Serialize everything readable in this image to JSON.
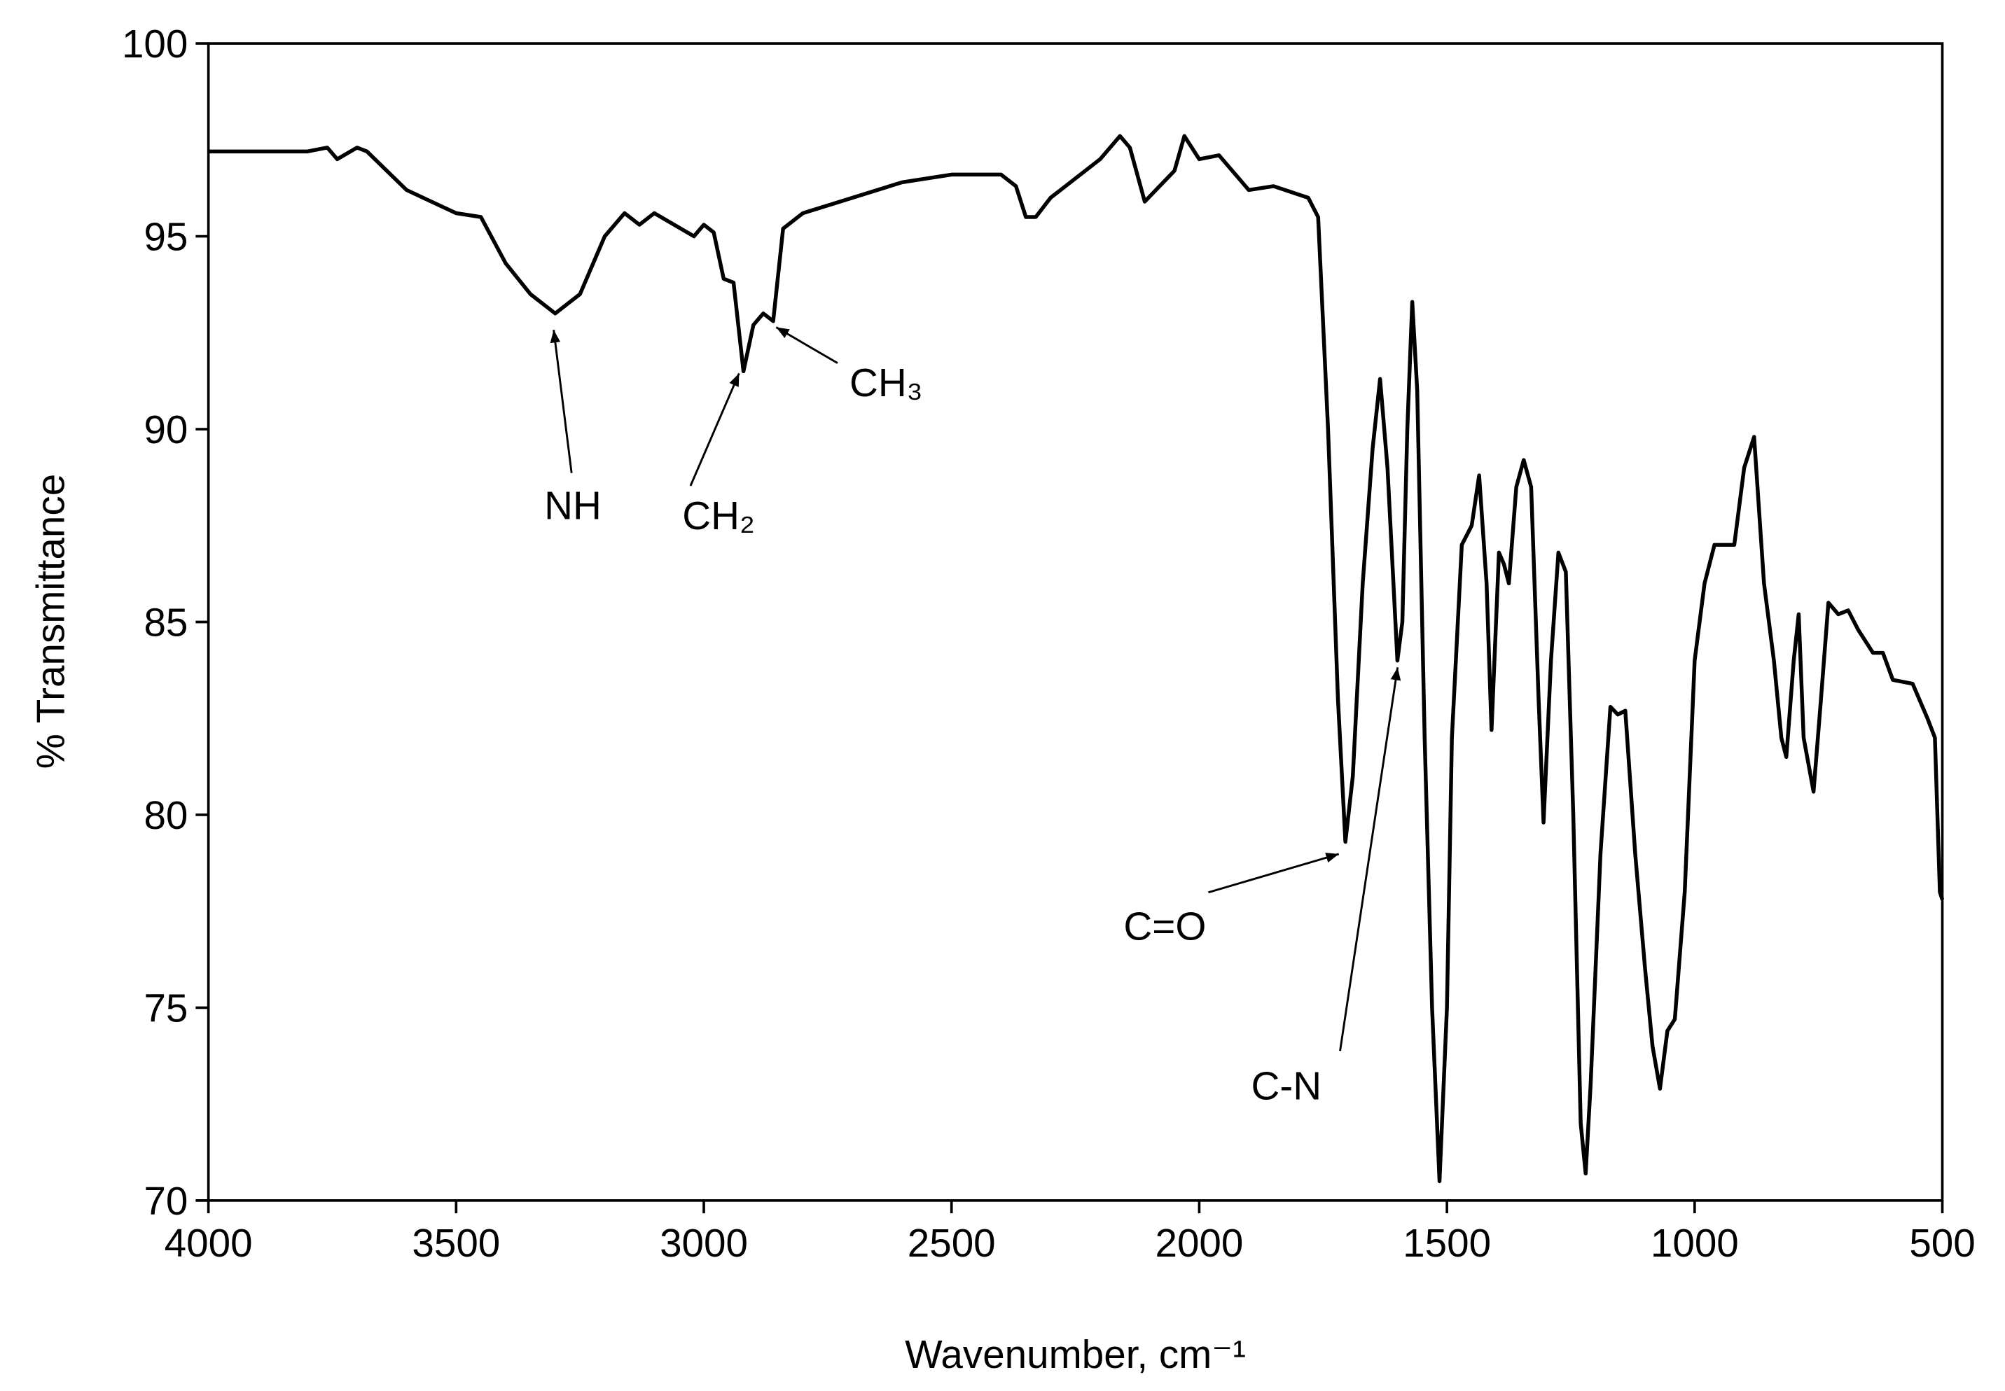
{
  "chart_data": {
    "type": "line",
    "xlabel": "Wavenumber, cm⁻¹",
    "ylabel": "% Transmittance",
    "xlim": [
      4000,
      500
    ],
    "ylim": [
      70,
      100
    ],
    "xticks": [
      4000,
      3500,
      3000,
      2500,
      2000,
      1500,
      1000,
      500
    ],
    "yticks": [
      70,
      75,
      80,
      85,
      90,
      95,
      100
    ],
    "grid": false,
    "series": [
      {
        "color": "#000000",
        "x": [
          4000,
          3900,
          3800,
          3760,
          3740,
          3700,
          3680,
          3600,
          3500,
          3450,
          3400,
          3350,
          3300,
          3250,
          3200,
          3160,
          3130,
          3100,
          3060,
          3020,
          3000,
          2980,
          2960,
          2940,
          2920,
          2900,
          2880,
          2860,
          2840,
          2800,
          2700,
          2600,
          2500,
          2400,
          2370,
          2350,
          2330,
          2300,
          2200,
          2160,
          2140,
          2110,
          2050,
          2030,
          2000,
          1960,
          1900,
          1850,
          1780,
          1760,
          1740,
          1720,
          1705,
          1690,
          1670,
          1650,
          1635,
          1620,
          1600,
          1590,
          1580,
          1570,
          1560,
          1545,
          1530,
          1515,
          1500,
          1490,
          1470,
          1450,
          1435,
          1420,
          1410,
          1395,
          1385,
          1375,
          1360,
          1345,
          1330,
          1315,
          1305,
          1290,
          1275,
          1260,
          1245,
          1230,
          1220,
          1210,
          1190,
          1170,
          1155,
          1140,
          1120,
          1100,
          1085,
          1070,
          1055,
          1040,
          1020,
          1000,
          980,
          960,
          940,
          920,
          900,
          880,
          860,
          840,
          825,
          815,
          800,
          790,
          780,
          760,
          745,
          730,
          710,
          690,
          670,
          640,
          620,
          600,
          560,
          530,
          515,
          505,
          500
        ],
        "values": [
          97.2,
          97.2,
          97.2,
          97.3,
          97.0,
          97.3,
          97.2,
          96.2,
          95.6,
          95.5,
          94.3,
          93.5,
          93.0,
          93.5,
          95.0,
          95.6,
          95.3,
          95.6,
          95.3,
          95.0,
          95.3,
          95.1,
          93.9,
          93.8,
          91.5,
          92.7,
          93.0,
          92.8,
          95.2,
          95.6,
          96.0,
          96.4,
          96.6,
          96.6,
          96.3,
          95.5,
          95.5,
          96.0,
          97.0,
          97.6,
          97.3,
          95.9,
          96.7,
          97.6,
          97.0,
          97.1,
          96.2,
          96.3,
          96.0,
          95.5,
          90,
          83,
          79.3,
          81,
          86,
          89.5,
          91.3,
          89,
          84,
          85,
          90,
          93.3,
          91,
          82,
          75,
          70.5,
          75,
          82,
          87,
          87.5,
          88.8,
          86,
          82.2,
          86.8,
          86.5,
          86.0,
          88.5,
          89.2,
          88.5,
          83,
          79.8,
          84,
          86.8,
          86.3,
          80,
          72,
          70.7,
          73,
          79,
          82.8,
          82.6,
          82.7,
          79,
          76,
          74,
          72.9,
          74.4,
          74.7,
          78,
          84,
          86,
          87,
          87,
          87,
          89,
          89.8,
          86,
          84,
          82,
          81.5,
          84,
          85.2,
          82,
          80.6,
          83,
          85.5,
          85.2,
          85.3,
          84.8,
          84.2,
          84.2,
          83.5,
          83.4,
          82.5,
          82,
          78,
          77.8
        ]
      }
    ],
    "annotations": [
      "NH",
      "CH₂",
      "CH₃",
      "C=O",
      "C-N"
    ]
  }
}
